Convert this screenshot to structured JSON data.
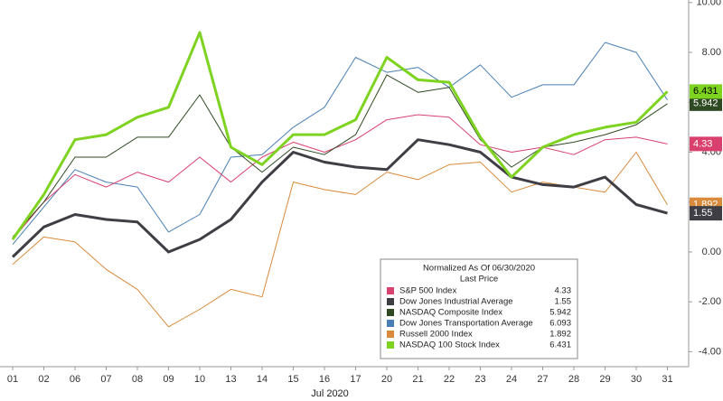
{
  "chart_data": {
    "type": "line",
    "x_label": "Jul 2020",
    "categories": [
      "01",
      "02",
      "06",
      "07",
      "08",
      "09",
      "10",
      "13",
      "14",
      "15",
      "16",
      "17",
      "20",
      "21",
      "22",
      "23",
      "24",
      "27",
      "28",
      "29",
      "30",
      "31"
    ],
    "series": [
      {
        "name": "Dow Jones Transportation Average",
        "color": "#4a7fb5",
        "width": 1,
        "values": [
          0.3,
          1.8,
          3.3,
          2.8,
          2.6,
          0.8,
          1.5,
          3.8,
          3.9,
          5.0,
          5.8,
          7.8,
          7.2,
          7.4,
          6.6,
          7.5,
          6.2,
          6.7,
          6.7,
          8.4,
          8.0,
          6.093
        ]
      },
      {
        "name": "Russell 2000 Index",
        "color": "#d98a3a",
        "width": 1,
        "values": [
          -0.5,
          0.6,
          0.4,
          -0.7,
          -1.5,
          -3.0,
          -2.3,
          -1.5,
          -1.8,
          2.8,
          2.5,
          2.3,
          3.2,
          2.9,
          3.5,
          3.6,
          2.4,
          2.8,
          2.6,
          2.4,
          4.0,
          1.892
        ]
      },
      {
        "name": "S&P 500 Index",
        "color": "#d9406e",
        "width": 1,
        "values": [
          0.5,
          2.0,
          3.1,
          2.6,
          3.2,
          2.8,
          3.8,
          2.8,
          3.8,
          4.4,
          4.0,
          4.5,
          5.3,
          5.5,
          5.4,
          4.3,
          4.0,
          4.2,
          3.9,
          4.5,
          4.6,
          4.33
        ]
      },
      {
        "name": "NASDAQ Composite Index",
        "color": "#2f4a22",
        "width": 1,
        "values": [
          0.6,
          2.0,
          3.8,
          3.8,
          4.6,
          4.6,
          6.3,
          4.2,
          3.2,
          4.2,
          3.9,
          4.7,
          7.1,
          6.4,
          6.6,
          4.5,
          3.4,
          4.2,
          4.4,
          4.7,
          5.1,
          5.942
        ]
      },
      {
        "name": "Dow Jones Industrial Average",
        "color": "#3e3e44",
        "width": 3,
        "values": [
          -0.2,
          1.0,
          1.5,
          1.3,
          1.2,
          0.0,
          0.5,
          1.3,
          2.8,
          4.0,
          3.6,
          3.4,
          3.3,
          4.5,
          4.3,
          4.0,
          3.0,
          2.7,
          2.6,
          3.0,
          1.9,
          1.55
        ]
      },
      {
        "name": "NASDAQ 100 Stock Index",
        "color": "#7ed321",
        "width": 3,
        "values": [
          0.5,
          2.3,
          4.5,
          4.7,
          5.4,
          5.8,
          8.8,
          4.2,
          3.5,
          4.7,
          4.7,
          5.3,
          7.8,
          6.9,
          6.8,
          4.6,
          3.0,
          4.2,
          4.7,
          5.0,
          5.2,
          6.431
        ]
      }
    ],
    "legend_title": "Normalized As Of 06/30/2020",
    "legend_subtitle": "Last Price",
    "legend_order": [
      2,
      4,
      3,
      0,
      1,
      5
    ],
    "ylim": [
      -4.6,
      10.1
    ],
    "yticks": [
      {
        "value": -4,
        "label": "-4.00"
      },
      {
        "value": -2,
        "label": "-2.00"
      },
      {
        "value": 0,
        "label": "0.00"
      },
      {
        "value": 2,
        "label": "2.00"
      },
      {
        "value": 4,
        "label": "4.00"
      },
      {
        "value": 6,
        "label": "6.00"
      },
      {
        "value": 8,
        "label": "8.00"
      },
      {
        "value": 10,
        "label": "10.00"
      }
    ]
  }
}
